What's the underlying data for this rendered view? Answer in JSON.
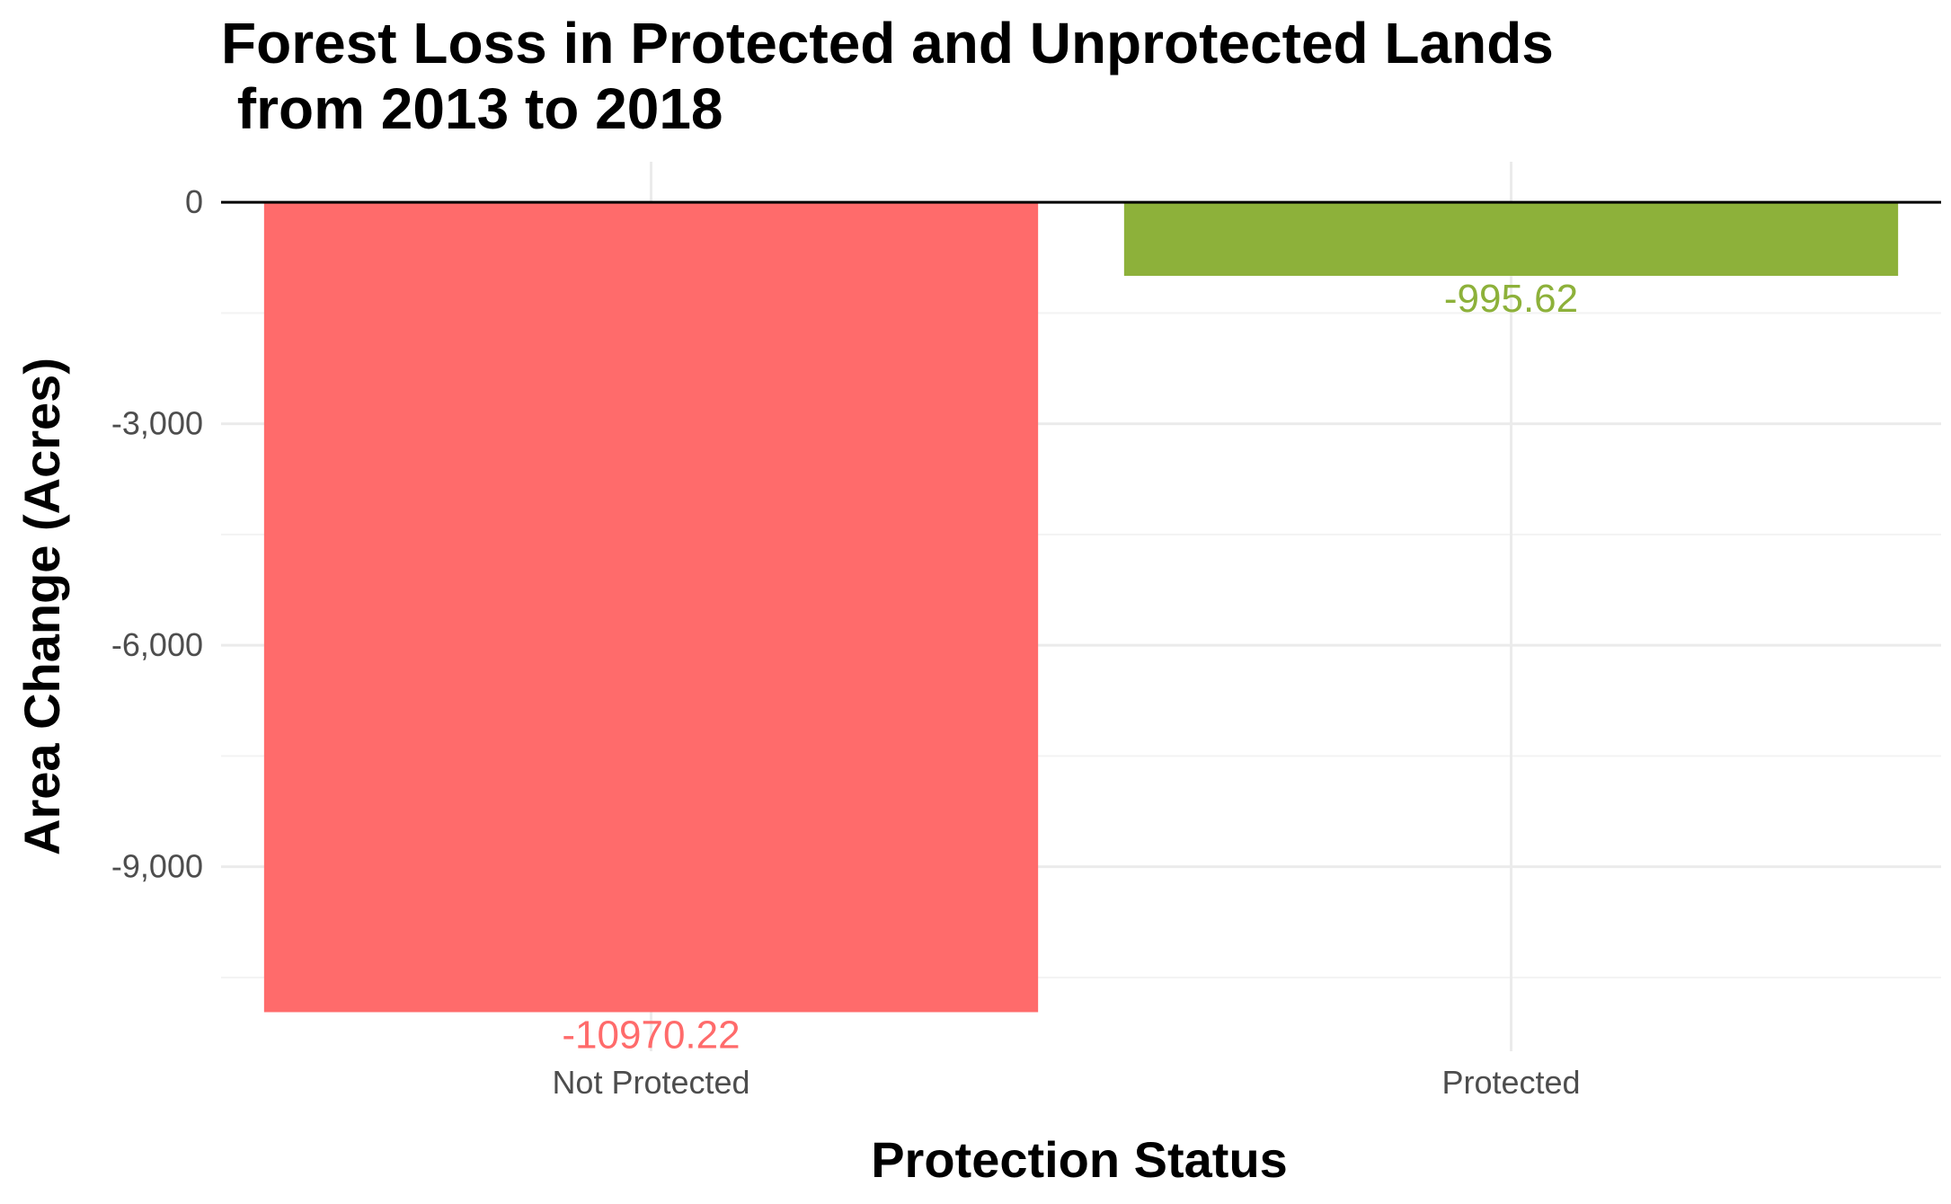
{
  "chart_data": {
    "type": "bar",
    "title_lines": [
      "Forest Loss in Protected and Unprotected Lands",
      " from 2013 to 2018"
    ],
    "xlabel": "Protection Status",
    "ylabel": "Area Change (Acres)",
    "categories": [
      "Not Protected",
      "Protected"
    ],
    "values": [
      -10970.22,
      -995.62
    ],
    "data_labels": [
      "-10970.22",
      "-995.62"
    ],
    "colors": [
      "#ff6b6b",
      "#8db13a"
    ],
    "ylim": [
      -11500,
      550
    ],
    "yticks": [
      0,
      -3000,
      -6000,
      -9000
    ],
    "ytick_labels": [
      "0",
      "-3,000",
      "-6,000",
      "-9,000"
    ],
    "reference_line": 0,
    "grid": true,
    "legend": "none"
  }
}
